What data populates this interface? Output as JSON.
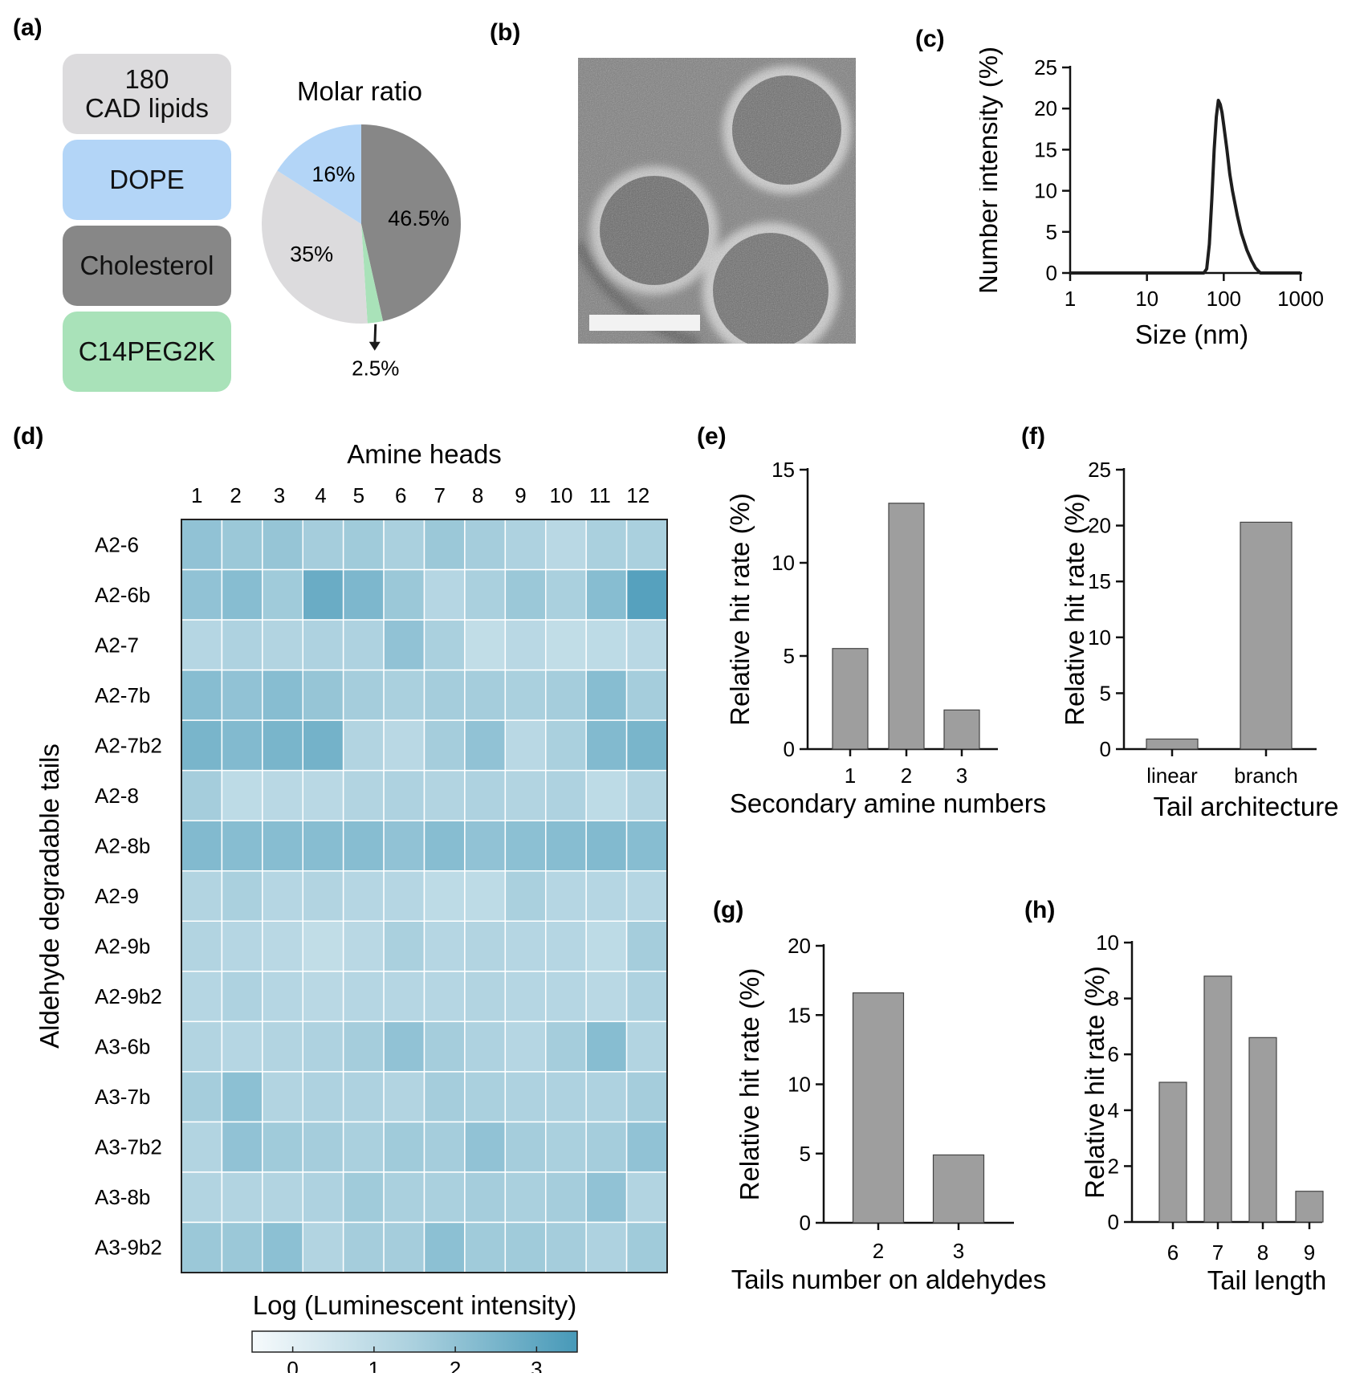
{
  "panels": {
    "a": "(a)",
    "b": "(b)",
    "c": "(c)",
    "d": "(d)",
    "e": "(e)",
    "f": "(f)",
    "g": "(g)",
    "h": "(h)"
  },
  "lipids": [
    {
      "label": "180\nCAD lipids",
      "color": "#dcdbdd"
    },
    {
      "label": "DOPE",
      "color": "#b3d5f7"
    },
    {
      "label": "Cholesterol",
      "color": "#878787"
    },
    {
      "label": "C14PEG2K",
      "color": "#a9e2b9"
    }
  ],
  "chart_data": [
    {
      "type": "pie",
      "title": "Molar ratio",
      "slices": [
        {
          "name": "Cholesterol",
          "value": 46.5,
          "label": "46.5%",
          "color": "#878787"
        },
        {
          "name": "C14PEG2K",
          "value": 2.5,
          "label": "2.5%",
          "color": "#a9e2b9"
        },
        {
          "name": "180 CAD lipids",
          "value": 35,
          "label": "35%",
          "color": "#dcdbdd"
        },
        {
          "name": "DOPE",
          "value": 16,
          "label": "16%",
          "color": "#b3d5f7"
        }
      ]
    },
    {
      "type": "line",
      "xlabel": "Size (nm)",
      "ylabel": "Number intensity (%)",
      "xscale": "log",
      "xlim": [
        1,
        1000
      ],
      "ylim": [
        0,
        25
      ],
      "xticks": [
        "1",
        "10",
        "100",
        "1000"
      ],
      "yticks": [
        "0",
        "5",
        "10",
        "15",
        "20",
        "25"
      ],
      "x": [
        1,
        40,
        55,
        60,
        65,
        70,
        75,
        80,
        85,
        90,
        95,
        100,
        110,
        120,
        130,
        150,
        170,
        200,
        230,
        260,
        300,
        1000
      ],
      "y": [
        0,
        0,
        0,
        0.5,
        3.5,
        9,
        15,
        19,
        21,
        20.5,
        19.5,
        18,
        15,
        12,
        10,
        7,
        4.8,
        2.8,
        1.5,
        0.6,
        0,
        0
      ]
    },
    {
      "type": "heatmap",
      "title": "Amine heads",
      "ylabel": "Aldehyde degradable tails",
      "colorbar_title": "Log (Luminescent intensity)",
      "colorbar_ticks": [
        "0",
        "1",
        "2",
        "3"
      ],
      "colorbar_range": [
        -0.5,
        3.5
      ],
      "columns": [
        "1",
        "2",
        "3",
        "4",
        "5",
        "6",
        "7",
        "8",
        "9",
        "10",
        "11",
        "12"
      ],
      "rows": [
        "A2-6",
        "A2-6b",
        "A2-7",
        "A2-7b",
        "A2-7b2",
        "A2-8",
        "A2-8b",
        "A2-9",
        "A2-9b",
        "A2-9b2",
        "A3-6b",
        "A3-7b",
        "A3-7b2",
        "A3-8b",
        "A3-9b2"
      ],
      "values": [
        [
          2.0,
          1.8,
          1.9,
          1.6,
          1.7,
          1.5,
          1.8,
          1.6,
          1.4,
          1.1,
          1.5,
          1.5
        ],
        [
          2.0,
          2.2,
          1.7,
          2.8,
          2.4,
          1.8,
          1.2,
          1.5,
          1.8,
          1.5,
          2.2,
          3.2
        ],
        [
          1.2,
          1.4,
          1.3,
          1.4,
          1.4,
          2.0,
          1.5,
          0.9,
          1.1,
          0.9,
          1.0,
          1.1
        ],
        [
          2.2,
          2.0,
          2.2,
          1.9,
          1.6,
          1.5,
          1.6,
          1.6,
          1.5,
          1.6,
          2.2,
          1.6
        ],
        [
          2.5,
          2.3,
          2.5,
          2.6,
          1.3,
          1.1,
          1.6,
          2.0,
          1.1,
          1.5,
          2.3,
          2.5
        ],
        [
          1.6,
          1.0,
          1.1,
          1.1,
          1.3,
          1.4,
          1.3,
          1.4,
          1.3,
          1.4,
          1.0,
          1.3
        ],
        [
          2.3,
          2.2,
          2.2,
          2.2,
          2.2,
          2.0,
          2.2,
          2.0,
          2.1,
          2.2,
          2.3,
          2.2
        ],
        [
          1.3,
          1.5,
          1.2,
          1.3,
          1.2,
          1.2,
          1.0,
          1.0,
          1.5,
          1.2,
          1.2,
          1.2
        ],
        [
          1.3,
          1.2,
          1.1,
          0.9,
          1.1,
          1.5,
          1.2,
          1.3,
          1.2,
          1.2,
          1.0,
          1.6
        ],
        [
          1.2,
          1.4,
          1.2,
          1.1,
          1.2,
          1.2,
          1.2,
          1.3,
          1.2,
          1.2,
          1.1,
          1.4
        ],
        [
          1.3,
          1.2,
          1.3,
          1.4,
          1.6,
          2.0,
          1.6,
          1.4,
          1.2,
          1.6,
          2.2,
          1.3
        ],
        [
          1.6,
          2.1,
          1.3,
          1.4,
          1.4,
          1.3,
          1.6,
          1.5,
          1.4,
          1.4,
          1.4,
          1.6
        ],
        [
          1.3,
          2.0,
          1.7,
          1.6,
          1.5,
          1.7,
          1.6,
          2.0,
          1.6,
          1.5,
          1.6,
          2.0
        ],
        [
          1.3,
          1.3,
          1.3,
          1.4,
          1.7,
          1.5,
          1.5,
          1.6,
          1.5,
          1.6,
          2.0,
          1.3
        ],
        [
          1.8,
          1.8,
          2.1,
          1.3,
          1.6,
          1.6,
          2.1,
          1.7,
          1.7,
          1.6,
          1.4,
          1.7
        ]
      ]
    },
    {
      "type": "bar",
      "xlabel": "Secondary amine numbers",
      "ylabel": "Relative hit rate (%)",
      "categories": [
        "1",
        "2",
        "3"
      ],
      "values": [
        5.4,
        13.2,
        2.1
      ],
      "ylim": [
        0,
        15
      ],
      "yticks": [
        "0",
        "5",
        "10",
        "15"
      ]
    },
    {
      "type": "bar",
      "xlabel": "Tail architecture",
      "ylabel": "Relative hit rate (%)",
      "categories": [
        "linear",
        "branch"
      ],
      "values": [
        0.9,
        20.3
      ],
      "ylim": [
        0,
        25
      ],
      "yticks": [
        "0",
        "5",
        "10",
        "15",
        "20",
        "25"
      ]
    },
    {
      "type": "bar",
      "xlabel": "Tails number on aldehydes",
      "ylabel": "Relative hit rate (%)",
      "categories": [
        "2",
        "3"
      ],
      "values": [
        16.6,
        4.9
      ],
      "ylim": [
        0,
        20
      ],
      "yticks": [
        "0",
        "5",
        "10",
        "15",
        "20"
      ]
    },
    {
      "type": "bar",
      "xlabel": "Tail length",
      "ylabel": "Relative hit rate (%)",
      "categories": [
        "6",
        "7",
        "8",
        "9"
      ],
      "values": [
        5.0,
        8.8,
        6.6,
        1.1
      ],
      "ylim": [
        0,
        10
      ],
      "yticks": [
        "0",
        "2",
        "4",
        "6",
        "8",
        "10"
      ]
    }
  ]
}
